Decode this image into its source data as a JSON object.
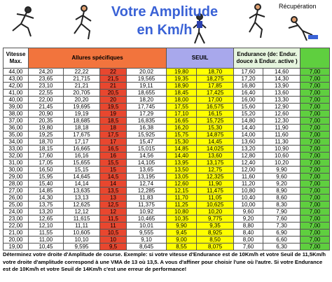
{
  "header": {
    "title_line1": "Votre Amplitude",
    "title_line2": "en Km/h",
    "recup_label": "Récupération"
  },
  "table": {
    "headers": [
      "Vitesse Max.",
      "Allures spécifiques",
      "SEUIL",
      "Endurance (de: Endur. douce à Endur. active )"
    ],
    "rows": [
      [
        "44,00",
        "24,20",
        "22,22",
        "22",
        "20,02",
        "19,80",
        "18,70",
        "17,60",
        "14,60",
        "7,00"
      ],
      [
        "43,00",
        "23,65",
        "21,715",
        "21,5",
        "19,565",
        "19,35",
        "18,275",
        "17,20",
        "14,30",
        "7,00"
      ],
      [
        "42,00",
        "23,10",
        "21,21",
        "21",
        "19,11",
        "18,90",
        "17,85",
        "16,80",
        "13,90",
        "7,00"
      ],
      [
        "41,00",
        "22,55",
        "20,705",
        "20,5",
        "18,655",
        "18,45",
        "17,425",
        "16,40",
        "13,60",
        "7,00"
      ],
      [
        "40,00",
        "22,00",
        "20,20",
        "20",
        "18,20",
        "18,00",
        "17,00",
        "16,00",
        "13,30",
        "7,00"
      ],
      [
        "39,00",
        "21,45",
        "19,695",
        "19,5",
        "17,745",
        "17,55",
        "16,575",
        "15,60",
        "12,90",
        "7,00"
      ],
      [
        "38,00",
        "20,90",
        "19,19",
        "19",
        "17,29",
        "17,10",
        "16,15",
        "15,20",
        "12,60",
        "7,00"
      ],
      [
        "37,00",
        "20,35",
        "18,685",
        "18,5",
        "16,835",
        "16,65",
        "15,725",
        "14,80",
        "12,30",
        "7,00"
      ],
      [
        "36,00",
        "19,80",
        "18,18",
        "18",
        "16,38",
        "16,20",
        "15,30",
        "14,40",
        "11,90",
        "7,00"
      ],
      [
        "35,00",
        "19,25",
        "17,675",
        "17,5",
        "15,925",
        "15,75",
        "14,875",
        "14,00",
        "11,60",
        "7,00"
      ],
      [
        "34,00",
        "18,70",
        "17,17",
        "17",
        "15,47",
        "15,30",
        "14,45",
        "13,60",
        "11,30",
        "7,00"
      ],
      [
        "33,00",
        "18,15",
        "16,665",
        "16,5",
        "15,015",
        "14,85",
        "14,025",
        "13,20",
        "10,90",
        "7,00"
      ],
      [
        "32,00",
        "17,60",
        "16,16",
        "16",
        "14,56",
        "14,40",
        "13,60",
        "12,80",
        "10,60",
        "7,00"
      ],
      [
        "31,00",
        "17,05",
        "15,655",
        "15,5",
        "14,105",
        "13,95",
        "13,175",
        "12,40",
        "10,20",
        "7,00"
      ],
      [
        "30,00",
        "16,50",
        "15,15",
        "15",
        "13,65",
        "13,50",
        "12,75",
        "12,00",
        "9,90",
        "7,00"
      ],
      [
        "29,00",
        "15,95",
        "14,645",
        "14,5",
        "13,195",
        "13,05",
        "12,325",
        "11,60",
        "9,60",
        "7,00"
      ],
      [
        "28,00",
        "15,40",
        "14,14",
        "14",
        "12,74",
        "12,60",
        "11,90",
        "11,20",
        "9,20",
        "7,00"
      ],
      [
        "27,00",
        "14,85",
        "13,635",
        "13,5",
        "12,285",
        "12,15",
        "11,475",
        "10,80",
        "8,90",
        "7,00"
      ],
      [
        "26,00",
        "14,30",
        "13,13",
        "13",
        "11,83",
        "11,70",
        "11,05",
        "10,40",
        "8,60",
        "7,00"
      ],
      [
        "25,00",
        "13,75",
        "12,625",
        "12,5",
        "11,375",
        "11,25",
        "10,625",
        "10,00",
        "8,30",
        "7,00"
      ],
      [
        "24,00",
        "13,20",
        "12,12",
        "12",
        "10,92",
        "10,80",
        "10,20",
        "9,60",
        "7,90",
        "7,00"
      ],
      [
        "23,00",
        "12,65",
        "11,615",
        "11,5",
        "10,465",
        "10,35",
        "9,775",
        "9,20",
        "7,60",
        "7,00"
      ],
      [
        "22,00",
        "12,10",
        "11,11",
        "11",
        "10,01",
        "9,90",
        "9,35",
        "8,80",
        "7,30",
        "7,00"
      ],
      [
        "21,00",
        "11,55",
        "10,605",
        "10,5",
        "9,555",
        "9,45",
        "8,925",
        "8,40",
        "6,90",
        "7,00"
      ],
      [
        "20,00",
        "11,00",
        "10,10",
        "10",
        "9,10",
        "9,00",
        "8,50",
        "8,00",
        "6,60",
        "7,00"
      ],
      [
        "19,00",
        "10,45",
        "9,595",
        "9,5",
        "8,645",
        "8,55",
        "8,075",
        "7,60",
        "6,30",
        "7,00"
      ]
    ]
  },
  "footer": "Déterminez votre droite d'Amplitude de course. Exemple: si votre vitesse d'Endurance est de 10Km/h et votre Seuil de 11,5Km/h votre droite d'amplitude correspond à une VMA de 13 où 13,5. A vous d'affiner pour choisir l'une où l'autre. Si votre Endurance est de 10Km/h et votre Seuil de 14Km/h c'est une erreur de performance!"
}
